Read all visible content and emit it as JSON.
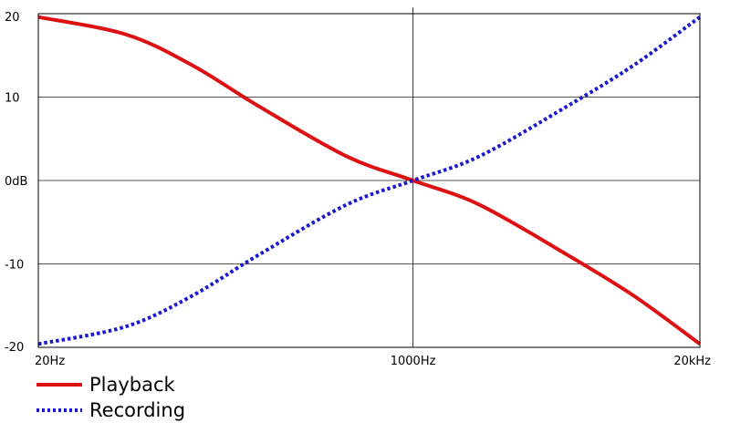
{
  "chart_data": {
    "type": "line",
    "xscale": "log",
    "xlim": [
      20,
      20000
    ],
    "ylim": [
      -20,
      20
    ],
    "x_ticks": [
      {
        "value": 20,
        "label": "20Hz"
      },
      {
        "value": 1000,
        "label": "1000Hz"
      },
      {
        "value": 20000,
        "label": "20kHz"
      }
    ],
    "y_ticks": [
      {
        "value": 20,
        "label": "20"
      },
      {
        "value": 10,
        "label": "10"
      },
      {
        "value": 0,
        "label": "0dB"
      },
      {
        "value": -10,
        "label": "-10"
      },
      {
        "value": -20,
        "label": "-20"
      }
    ],
    "grid": true,
    "legend_position": "bottom-left",
    "series": [
      {
        "name": "Playback",
        "color": "#dd1111",
        "style": "solid",
        "x": [
          20,
          50,
          100,
          200,
          500,
          1000,
          2000,
          5000,
          10000,
          20000
        ],
        "y": [
          19.6,
          17.5,
          13.8,
          8.9,
          2.9,
          0,
          -2.9,
          -8.9,
          -13.8,
          -19.6
        ]
      },
      {
        "name": "Recording",
        "color": "#1a1acc",
        "style": "dotted",
        "x": [
          20,
          50,
          100,
          200,
          500,
          1000,
          2000,
          5000,
          10000,
          20000
        ],
        "y": [
          -19.6,
          -17.5,
          -13.8,
          -8.9,
          -2.9,
          0,
          2.9,
          8.9,
          13.8,
          19.6
        ]
      }
    ]
  }
}
